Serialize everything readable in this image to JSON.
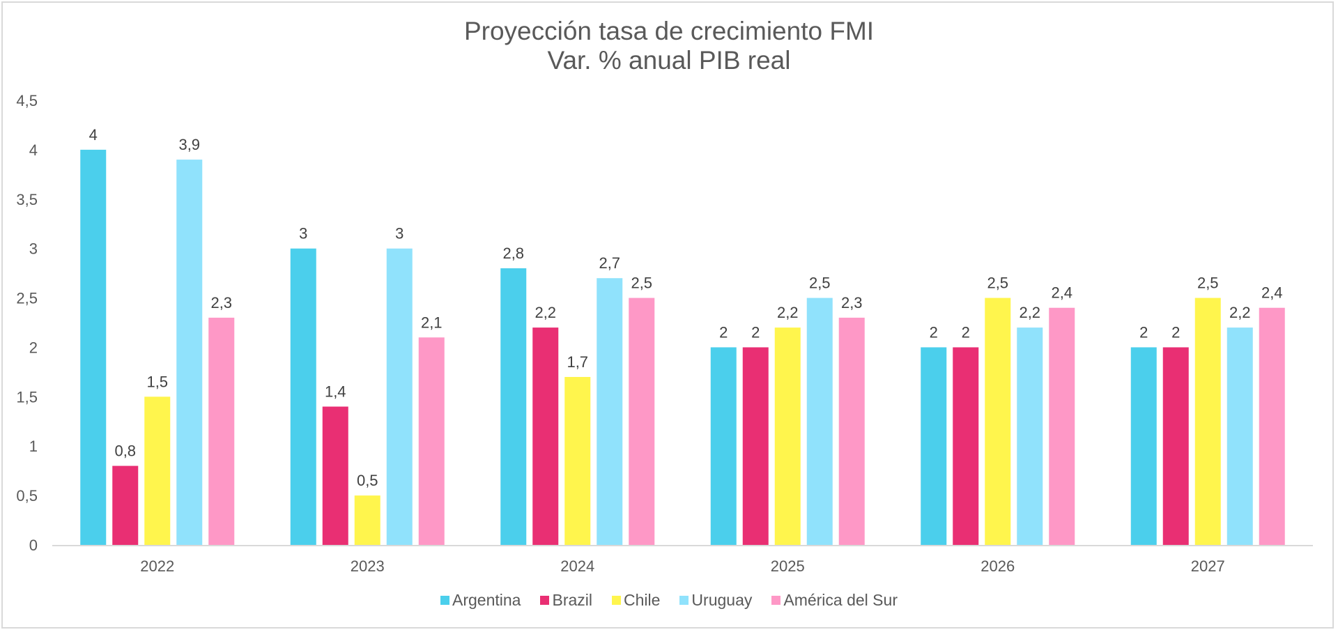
{
  "chart_data": {
    "type": "bar",
    "title": "Proyección tasa de crecimiento FMI",
    "subtitle": "Var. % anual PIB real",
    "xlabel": "",
    "ylabel": "",
    "ylim": [
      0,
      4.5
    ],
    "yticks": [
      0,
      0.5,
      1,
      1.5,
      2,
      2.5,
      3,
      3.5,
      4,
      4.5
    ],
    "ytick_labels": [
      "0",
      "0,5",
      "1",
      "1,5",
      "2",
      "2,5",
      "3",
      "3,5",
      "4",
      "4,5"
    ],
    "grid": false,
    "legend_position": "bottom",
    "categories": [
      "2022",
      "2023",
      "2024",
      "2025",
      "2026",
      "2027"
    ],
    "series": [
      {
        "name": "Argentina",
        "color": "#4BCFEC",
        "values": [
          4,
          3,
          2.8,
          2,
          2,
          2
        ],
        "labels": [
          "4",
          "3",
          "2,8",
          "2",
          "2",
          "2"
        ]
      },
      {
        "name": "Brazil",
        "color": "#E92F73",
        "values": [
          0.8,
          1.4,
          2.2,
          2,
          2,
          2
        ],
        "labels": [
          "0,8",
          "1,4",
          "2,2",
          "2",
          "2",
          "2"
        ]
      },
      {
        "name": "Chile",
        "color": "#FFF54D",
        "values": [
          1.5,
          0.5,
          1.7,
          2.2,
          2.5,
          2.5
        ],
        "labels": [
          "1,5",
          "0,5",
          "1,7",
          "2,2",
          "2,5",
          "2,5"
        ]
      },
      {
        "name": "Uruguay",
        "color": "#90E2FC",
        "values": [
          3.9,
          3,
          2.7,
          2.5,
          2.2,
          2.2
        ],
        "labels": [
          "3,9",
          "3",
          "2,7",
          "2,5",
          "2,2",
          "2,2"
        ]
      },
      {
        "name": "América del Sur",
        "color": "#FE98C6",
        "values": [
          2.3,
          2.1,
          2.5,
          2.3,
          2.4,
          2.4
        ],
        "labels": [
          "2,3",
          "2,1",
          "2,5",
          "2,3",
          "2,4",
          "2,4"
        ]
      }
    ]
  }
}
